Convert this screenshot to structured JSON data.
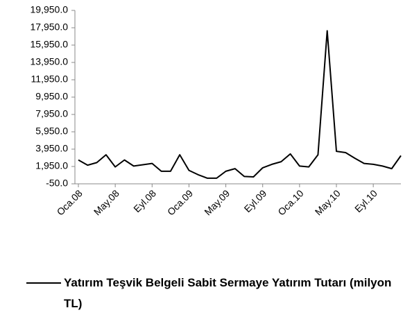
{
  "chart_data": {
    "type": "line",
    "categories": [
      "Oca.08",
      null,
      null,
      null,
      "May.08",
      null,
      null,
      null,
      "Eyl.08",
      null,
      null,
      null,
      "Oca.09",
      null,
      null,
      null,
      "May.09",
      null,
      null,
      null,
      "Eyl.09",
      null,
      null,
      null,
      "Oca.10",
      null,
      null,
      null,
      "May.10",
      null,
      null,
      null,
      "Eyl.10",
      null,
      null,
      null
    ],
    "series": [
      {
        "name": "Yatırım Teşvik Belgeli Sabit Sermaye Yatırım Tutarı (milyon TL)",
        "color": "#000000",
        "values": [
          2700,
          2100,
          2400,
          3300,
          1900,
          2700,
          2000,
          2150,
          2300,
          1400,
          1400,
          3300,
          1500,
          1000,
          600,
          600,
          1400,
          1700,
          800,
          750,
          1800,
          2200,
          2500,
          3400,
          2000,
          1900,
          3300,
          17600,
          3700,
          3550,
          2900,
          2300,
          2200,
          2000,
          1700,
          3200
        ]
      }
    ],
    "ylim": [
      -50,
      19950
    ],
    "yticks": [
      {
        "value": -50,
        "label": "-50.0"
      },
      {
        "value": 1950,
        "label": "1,950.0"
      },
      {
        "value": 3950,
        "label": "3,950.0"
      },
      {
        "value": 5950,
        "label": "5,950.0"
      },
      {
        "value": 7950,
        "label": "7,950.0"
      },
      {
        "value": 9950,
        "label": "9,950.0"
      },
      {
        "value": 11950,
        "label": "11,950.0"
      },
      {
        "value": 13950,
        "label": "13,950.0"
      },
      {
        "value": 15950,
        "label": "15,950.0"
      },
      {
        "value": 17950,
        "label": "17,950.0"
      },
      {
        "value": 19950,
        "label": "19,950.0"
      }
    ],
    "grid": false,
    "legend": "bottom"
  }
}
